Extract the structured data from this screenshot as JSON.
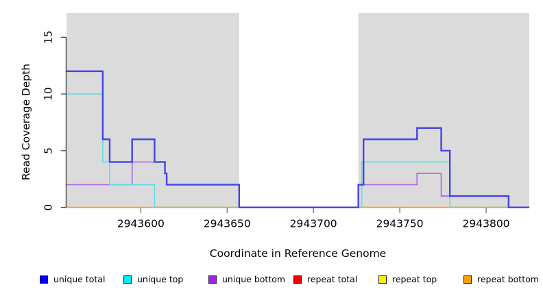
{
  "chart_data": {
    "type": "line",
    "style": "step",
    "title": "",
    "xlabel": "Coordinate in Reference Genome",
    "ylabel": "Read Coverage Depth",
    "x_range": [
      2943557,
      2943825
    ],
    "y_range": [
      0,
      17
    ],
    "x_ticks": [
      2943600,
      2943650,
      2943700,
      2943750,
      2943800
    ],
    "y_ticks": [
      0,
      5,
      10,
      15
    ],
    "grid": false,
    "legend_position": "bottom",
    "background_bands": {
      "color": "#dbdbdb",
      "regions": [
        [
          2943557,
          2943657
        ],
        [
          2943726,
          2943825
        ]
      ]
    },
    "baseline_blend_color": "#7cc87c",
    "series": [
      {
        "name": "unique total",
        "color": "#4342e8",
        "legend_color": "#0000f0",
        "line_width": 2.4,
        "steps": [
          [
            2943557,
            12
          ],
          [
            2943578,
            6
          ],
          [
            2943582,
            4
          ],
          [
            2943595,
            6
          ],
          [
            2943608,
            4
          ],
          [
            2943614,
            3
          ],
          [
            2943615,
            2
          ],
          [
            2943657,
            0
          ],
          [
            2943726,
            2
          ],
          [
            2943729,
            6
          ],
          [
            2943760,
            7
          ],
          [
            2943774,
            5
          ],
          [
            2943779,
            1
          ],
          [
            2943813,
            0
          ]
        ]
      },
      {
        "name": "unique top",
        "color": "#5bdfe9",
        "legend_color": "#00e8f0",
        "line_width": 1.6,
        "steps": [
          [
            2943557,
            10
          ],
          [
            2943578,
            4
          ],
          [
            2943582,
            2
          ],
          [
            2943608,
            0
          ],
          [
            2943728,
            4
          ],
          [
            2943779,
            0
          ]
        ]
      },
      {
        "name": "unique bottom",
        "color": "#b168de",
        "legend_color": "#a020f0",
        "line_width": 1.7,
        "steps": [
          [
            2943557,
            2
          ],
          [
            2943595,
            4
          ],
          [
            2943614,
            3
          ],
          [
            2943615,
            2
          ],
          [
            2943657,
            0
          ],
          [
            2943726,
            2
          ],
          [
            2943760,
            3
          ],
          [
            2943774,
            1
          ],
          [
            2943813,
            0
          ]
        ]
      },
      {
        "name": "repeat total",
        "color": "#ee1111",
        "legend_color": "#ee0000",
        "line_width": 1.6,
        "steps": [
          [
            2943557,
            0
          ]
        ]
      },
      {
        "name": "repeat top",
        "color": "#f8ef00",
        "legend_color": "#f8ef00",
        "line_width": 1.6,
        "steps": [
          [
            2943557,
            0
          ]
        ]
      },
      {
        "name": "repeat bottom",
        "color": "#ff9f00",
        "legend_color": "#f5a000",
        "line_width": 1.7,
        "steps": [
          [
            2943557,
            0
          ]
        ]
      }
    ]
  }
}
